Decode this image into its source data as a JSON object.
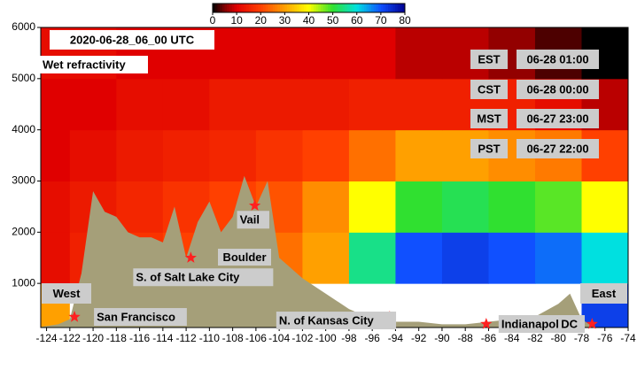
{
  "chart_data": {
    "type": "heatmap",
    "title": "2020-06-28_06_00 UTC",
    "subtitle": "Wet refractivity",
    "x": [
      -124,
      -120,
      -116,
      -112,
      -108,
      -104,
      -100,
      -96,
      -92,
      -88,
      -84,
      -80,
      -76
    ],
    "y": [
      500,
      1500,
      2500,
      3500,
      4500,
      5500
    ],
    "values": [
      [
        30,
        null,
        null,
        null,
        null,
        null,
        null,
        null,
        null,
        null,
        null,
        null,
        72
      ],
      [
        12,
        15,
        18,
        20,
        22,
        25,
        30,
        55,
        70,
        72,
        70,
        68,
        60
      ],
      [
        12,
        14,
        16,
        18,
        20,
        22,
        28,
        40,
        50,
        52,
        50,
        48,
        40
      ],
      [
        10,
        12,
        14,
        15,
        16,
        18,
        20,
        25,
        30,
        30,
        28,
        26,
        20
      ],
      [
        10,
        10,
        12,
        12,
        14,
        14,
        14,
        15,
        15,
        15,
        15,
        12,
        8
      ],
      [
        12,
        12,
        10,
        10,
        10,
        10,
        10,
        10,
        8,
        8,
        6,
        3,
        0
      ]
    ],
    "colorscale": [
      [
        0,
        "#000000"
      ],
      [
        5,
        "#800000"
      ],
      [
        10,
        "#e00000"
      ],
      [
        20,
        "#ff4000"
      ],
      [
        30,
        "#ffa000"
      ],
      [
        40,
        "#ffff00"
      ],
      [
        50,
        "#30e030"
      ],
      [
        60,
        "#00e0e0"
      ],
      [
        70,
        "#1050ff"
      ],
      [
        80,
        "#000090"
      ]
    ],
    "colorbar_ticks": [
      0,
      10,
      20,
      30,
      40,
      50,
      60,
      70,
      80
    ],
    "colorbar_lim": [
      0,
      80
    ],
    "terrain": {
      "color": "#a59f79",
      "x": [
        -124.5,
        -123,
        -122,
        -121,
        -120,
        -119,
        -118,
        -117,
        -116,
        -115,
        -114,
        -113,
        -112,
        -111,
        -110,
        -109,
        -108,
        -107,
        -106,
        -105,
        -104,
        -102,
        -100,
        -98,
        -96,
        -94,
        -92,
        -90,
        -88,
        -86,
        -84,
        -82,
        -80,
        -79,
        -78,
        -77,
        -76,
        -74
      ],
      "values": [
        150,
        200,
        300,
        1200,
        2800,
        2400,
        2300,
        2000,
        1900,
        1900,
        1800,
        2500,
        1500,
        2200,
        2600,
        2000,
        2300,
        3100,
        2500,
        3000,
        1500,
        1100,
        800,
        500,
        300,
        250,
        250,
        200,
        200,
        250,
        300,
        350,
        600,
        800,
        300,
        150,
        140,
        140
      ]
    },
    "stations": [
      {
        "name": "San Francisco",
        "x": -121.6,
        "y": 345
      },
      {
        "name": "S. of Salt Lake City",
        "x": -111.6,
        "y": 1500
      },
      {
        "name": "Vail",
        "x": -106.1,
        "y": 2520
      },
      {
        "name": "N. of Kansas City",
        "x": -94.5,
        "y": 345
      },
      {
        "name": "Indianapolis",
        "x": -86.2,
        "y": 207
      },
      {
        "name": "DC",
        "x": -77.1,
        "y": 207
      }
    ],
    "station_color": "#ff2020",
    "annotations": [
      "Boulder",
      "West",
      "East"
    ],
    "time_zones": [
      [
        "EST",
        "06-28 01:00"
      ],
      [
        "CST",
        "06-28 00:00"
      ],
      [
        "MST",
        "06-27 23:00"
      ],
      [
        "PST",
        "06-27 22:00"
      ]
    ],
    "xlim": [
      -124.5,
      -74
    ],
    "ylim": [
      138,
      6000
    ],
    "xticks": [
      -124,
      -122,
      -120,
      -118,
      -116,
      -114,
      -112,
      -110,
      -108,
      -106,
      -104,
      -102,
      -100,
      -98,
      -96,
      -94,
      -92,
      -90,
      -88,
      -86,
      -84,
      -82,
      -80,
      -78,
      -76,
      -74
    ],
    "yticks": [
      1000,
      2000,
      3000,
      4000,
      5000,
      6000
    ]
  }
}
